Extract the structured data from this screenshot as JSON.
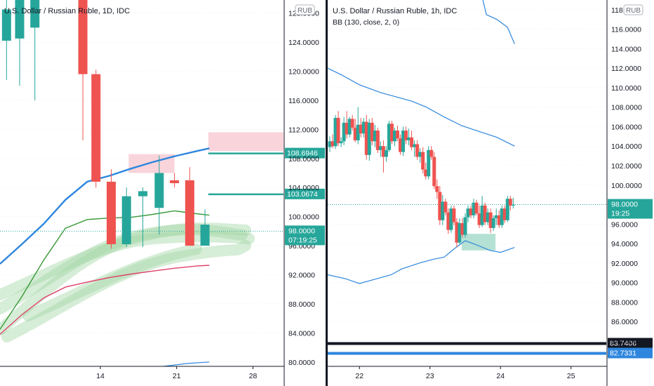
{
  "colors": {
    "up": "#26a69a",
    "down": "#ef5350",
    "bb": "#2e86de",
    "ma_green": "#3a9a3a",
    "ma_red": "#e0406a",
    "zone_pink": "#f8c6cf",
    "zone_teal": "#a8dccd",
    "hl_green": "#a5d6a7",
    "axis_line": "#131722",
    "grid": "#e0e3eb"
  },
  "chart_data": [
    {
      "type": "candlestick",
      "title": "U.S. Dollar / Russian Ruble, 1D, IDC",
      "currency_label": "RUB",
      "y_ticks": [
        "80.0000",
        "84.0000",
        "88.0000",
        "92.0000",
        "96.0000",
        "100.0000",
        "104.0000",
        "108.0000",
        "112.0000",
        "116.0000",
        "120.0000",
        "124.0000",
        "128.0000"
      ],
      "y_tick_values": [
        80,
        84,
        88,
        92,
        96,
        100,
        104,
        108,
        112,
        116,
        120,
        124,
        128
      ],
      "ylim": [
        79.4,
        129.8
      ],
      "x_tick_labels": [
        "14",
        "21",
        "28"
      ],
      "x_tick_positions": [
        4.6,
        8.1,
        11.6
      ],
      "xlim": [
        0,
        13
      ],
      "candles": [
        {
          "t": 0.3,
          "open": 124.2,
          "high": 132.0,
          "low": 118.8,
          "close": 128.5
        },
        {
          "t": 0.9,
          "open": 124.5,
          "high": 130.0,
          "low": 118.0,
          "close": 130.0
        },
        {
          "t": 1.6,
          "open": 126.0,
          "high": 131.0,
          "low": 116.0,
          "close": 130.0
        },
        {
          "t": 3.8,
          "open": 133.0,
          "high": 134.0,
          "low": 110.5,
          "close": 119.6
        },
        {
          "t": 4.4,
          "open": 119.6,
          "high": 120.2,
          "low": 104.0,
          "close": 104.8
        },
        {
          "t": 5.1,
          "open": 104.8,
          "high": 106.5,
          "low": 95.6,
          "close": 96.2
        },
        {
          "t": 5.8,
          "open": 96.2,
          "high": 104.0,
          "low": 95.8,
          "close": 102.8
        },
        {
          "t": 6.55,
          "open": 102.8,
          "high": 104.0,
          "low": 95.8,
          "close": 103.5
        },
        {
          "t": 7.3,
          "open": 101.2,
          "high": 108.4,
          "low": 97.5,
          "close": 106.0
        },
        {
          "t": 8.0,
          "open": 105.0,
          "high": 106.0,
          "low": 104.0,
          "close": 104.6
        },
        {
          "t": 8.7,
          "open": 105.0,
          "high": 106.8,
          "low": 96.0,
          "close": 96.0
        },
        {
          "t": 9.4,
          "open": 96.0,
          "high": 101.0,
          "low": 96.0,
          "close": 98.9
        }
      ],
      "bb_upper": [
        {
          "t": 0,
          "v": 93.5
        },
        {
          "t": 1,
          "v": 96.2
        },
        {
          "t": 2,
          "v": 99.0
        },
        {
          "t": 3,
          "v": 102.3
        },
        {
          "t": 4,
          "v": 104.8
        },
        {
          "t": 5,
          "v": 105.6
        },
        {
          "t": 6,
          "v": 106.6
        },
        {
          "t": 7,
          "v": 107.5
        },
        {
          "t": 8,
          "v": 108.3
        },
        {
          "t": 9,
          "v": 109.0
        },
        {
          "t": 9.6,
          "v": 109.4
        }
      ],
      "ma_green": [
        {
          "t": 0,
          "v": 84.5
        },
        {
          "t": 1,
          "v": 89.0
        },
        {
          "t": 2,
          "v": 94.0
        },
        {
          "t": 3,
          "v": 98.4
        },
        {
          "t": 4,
          "v": 99.6
        },
        {
          "t": 5,
          "v": 99.8
        },
        {
          "t": 6,
          "v": 99.9
        },
        {
          "t": 7,
          "v": 100.3
        },
        {
          "t": 8,
          "v": 100.8
        },
        {
          "t": 9,
          "v": 100.4
        },
        {
          "t": 9.6,
          "v": 100.2
        }
      ],
      "ma_red": [
        {
          "t": 0,
          "v": 83.8
        },
        {
          "t": 1,
          "v": 86.5
        },
        {
          "t": 2,
          "v": 88.8
        },
        {
          "t": 3,
          "v": 90.3
        },
        {
          "t": 4,
          "v": 91.0
        },
        {
          "t": 5,
          "v": 91.6
        },
        {
          "t": 6,
          "v": 92.1
        },
        {
          "t": 7,
          "v": 92.5
        },
        {
          "t": 8,
          "v": 92.9
        },
        {
          "t": 9,
          "v": 93.2
        },
        {
          "t": 9.6,
          "v": 93.3
        }
      ],
      "bb_lower": [
        {
          "t": 7.5,
          "v": 79.4
        },
        {
          "t": 8.6,
          "v": 79.8
        },
        {
          "t": 9.6,
          "v": 80.0
        }
      ],
      "zones": [
        {
          "t0": 5.9,
          "t1": 8.0,
          "v0": 106.0,
          "v1": 108.6,
          "role": "pink"
        },
        {
          "t0": 9.55,
          "t1": 13.0,
          "v0": 109.0,
          "v1": 111.6,
          "role": "pink"
        }
      ],
      "levels": [
        {
          "t0": 9.55,
          "t1": 13.0,
          "v": 108.6946,
          "label": "108.6946",
          "role": "green"
        },
        {
          "t0": 9.55,
          "t1": 13.0,
          "v": 103.0674,
          "label": "103.0674",
          "role": "green"
        }
      ],
      "last_price": {
        "v": 98.0,
        "label": "98.0000",
        "countdown": "07:19:25"
      }
    },
    {
      "type": "candlestick",
      "title": "U.S. Dollar / Russian Ruble, 1h, IDC",
      "study_label": "BB (130, close, 2, 0)",
      "currency_label": "RUB",
      "y_ticks": [
        "84.0000",
        "86.0000",
        "88.0000",
        "90.0000",
        "92.0000",
        "94.0000",
        "96.0000",
        "98.0000",
        "100.0000",
        "102.0000",
        "104.0000",
        "106.0000",
        "108.0000",
        "110.0000",
        "112.0000",
        "114.0000",
        "116.0000",
        "118.0000"
      ],
      "y_tick_values": [
        84,
        86,
        88,
        90,
        92,
        94,
        96,
        98,
        100,
        102,
        104,
        106,
        108,
        110,
        112,
        114,
        116,
        118
      ],
      "ylim": [
        81.4,
        119.0
      ],
      "x_tick_labels": [
        "22",
        "23",
        "24",
        "25"
      ],
      "x_tick_positions": [
        22,
        23,
        24,
        25
      ],
      "xlim": [
        21.55,
        25.5
      ],
      "candles": [
        {
          "t": 21.58,
          "open": 103.9,
          "high": 105.0,
          "low": 103.4,
          "close": 104.5
        },
        {
          "t": 21.62,
          "open": 104.5,
          "high": 105.2,
          "low": 103.8,
          "close": 104.0
        },
        {
          "t": 21.66,
          "open": 104.0,
          "high": 107.2,
          "low": 103.7,
          "close": 106.9
        },
        {
          "t": 21.7,
          "open": 106.9,
          "high": 107.6,
          "low": 104.0,
          "close": 104.3
        },
        {
          "t": 21.74,
          "open": 104.3,
          "high": 104.9,
          "low": 103.9,
          "close": 104.5
        },
        {
          "t": 21.78,
          "open": 104.5,
          "high": 107.0,
          "low": 104.1,
          "close": 106.4
        },
        {
          "t": 21.82,
          "open": 106.4,
          "high": 107.6,
          "low": 104.8,
          "close": 105.2
        },
        {
          "t": 21.86,
          "open": 105.2,
          "high": 107.0,
          "low": 104.9,
          "close": 106.8
        },
        {
          "t": 21.9,
          "open": 106.8,
          "high": 107.2,
          "low": 105.6,
          "close": 105.9
        },
        {
          "t": 21.94,
          "open": 105.9,
          "high": 106.8,
          "low": 104.4,
          "close": 104.6
        },
        {
          "t": 21.98,
          "open": 104.6,
          "high": 108.0,
          "low": 104.2,
          "close": 106.2
        },
        {
          "t": 22.02,
          "open": 106.2,
          "high": 106.9,
          "low": 104.9,
          "close": 105.3
        },
        {
          "t": 22.06,
          "open": 105.3,
          "high": 106.9,
          "low": 104.9,
          "close": 106.5
        },
        {
          "t": 22.1,
          "open": 106.5,
          "high": 107.2,
          "low": 102.6,
          "close": 103.1
        },
        {
          "t": 22.14,
          "open": 103.1,
          "high": 106.8,
          "low": 102.5,
          "close": 106.4
        },
        {
          "t": 22.18,
          "open": 106.4,
          "high": 106.9,
          "low": 104.1,
          "close": 104.5
        },
        {
          "t": 22.22,
          "open": 104.5,
          "high": 106.2,
          "low": 103.9,
          "close": 105.6
        },
        {
          "t": 22.26,
          "open": 105.6,
          "high": 105.9,
          "low": 103.3,
          "close": 103.6
        },
        {
          "t": 22.3,
          "open": 103.6,
          "high": 104.5,
          "low": 102.9,
          "close": 104.0
        },
        {
          "t": 22.34,
          "open": 104.0,
          "high": 104.6,
          "low": 101.3,
          "close": 102.9
        },
        {
          "t": 22.38,
          "open": 102.9,
          "high": 104.0,
          "low": 102.4,
          "close": 103.6
        },
        {
          "t": 22.42,
          "open": 103.6,
          "high": 106.6,
          "low": 103.4,
          "close": 106.3
        },
        {
          "t": 22.46,
          "open": 106.3,
          "high": 106.6,
          "low": 104.2,
          "close": 104.5
        },
        {
          "t": 22.5,
          "open": 104.5,
          "high": 105.9,
          "low": 104.0,
          "close": 105.6
        },
        {
          "t": 22.54,
          "open": 105.6,
          "high": 106.1,
          "low": 104.5,
          "close": 104.8
        },
        {
          "t": 22.58,
          "open": 104.8,
          "high": 105.2,
          "low": 103.1,
          "close": 103.4
        },
        {
          "t": 22.62,
          "open": 103.4,
          "high": 106.0,
          "low": 103.0,
          "close": 105.6
        },
        {
          "t": 22.66,
          "open": 105.6,
          "high": 106.0,
          "low": 104.2,
          "close": 104.6
        },
        {
          "t": 22.7,
          "open": 104.6,
          "high": 105.8,
          "low": 104.1,
          "close": 104.9
        },
        {
          "t": 22.74,
          "open": 104.9,
          "high": 105.6,
          "low": 103.6,
          "close": 103.9
        },
        {
          "t": 22.78,
          "open": 103.9,
          "high": 104.6,
          "low": 102.9,
          "close": 104.2
        },
        {
          "t": 22.82,
          "open": 104.2,
          "high": 104.6,
          "low": 102.6,
          "close": 102.9
        },
        {
          "t": 22.86,
          "open": 102.9,
          "high": 103.8,
          "low": 102.3,
          "close": 103.4
        },
        {
          "t": 22.9,
          "open": 103.4,
          "high": 103.9,
          "low": 101.2,
          "close": 101.6
        },
        {
          "t": 22.94,
          "open": 101.6,
          "high": 102.3,
          "low": 100.6,
          "close": 100.9
        },
        {
          "t": 22.98,
          "open": 100.9,
          "high": 104.0,
          "low": 100.6,
          "close": 103.6
        },
        {
          "t": 23.02,
          "open": 103.6,
          "high": 104.0,
          "low": 102.6,
          "close": 102.9
        },
        {
          "t": 23.06,
          "open": 102.9,
          "high": 103.4,
          "low": 99.6,
          "close": 99.9
        },
        {
          "t": 23.1,
          "open": 99.9,
          "high": 100.6,
          "low": 98.6,
          "close": 99.3
        },
        {
          "t": 23.14,
          "open": 99.3,
          "high": 99.9,
          "low": 95.9,
          "close": 96.4
        },
        {
          "t": 23.18,
          "open": 96.4,
          "high": 99.0,
          "low": 95.9,
          "close": 98.3
        },
        {
          "t": 23.22,
          "open": 98.3,
          "high": 98.6,
          "low": 96.9,
          "close": 97.2
        },
        {
          "t": 23.26,
          "open": 97.2,
          "high": 97.6,
          "low": 95.0,
          "close": 95.4
        },
        {
          "t": 23.3,
          "open": 95.4,
          "high": 97.9,
          "low": 95.1,
          "close": 97.6
        },
        {
          "t": 23.34,
          "open": 97.6,
          "high": 97.9,
          "low": 95.9,
          "close": 96.2
        },
        {
          "t": 23.38,
          "open": 96.2,
          "high": 96.6,
          "low": 93.6,
          "close": 94.1
        },
        {
          "t": 23.42,
          "open": 94.1,
          "high": 96.6,
          "low": 93.9,
          "close": 96.1
        },
        {
          "t": 23.46,
          "open": 96.1,
          "high": 96.6,
          "low": 94.6,
          "close": 94.9
        },
        {
          "t": 23.5,
          "open": 94.9,
          "high": 97.1,
          "low": 94.6,
          "close": 96.7
        },
        {
          "t": 23.54,
          "open": 96.7,
          "high": 97.9,
          "low": 96.2,
          "close": 97.6
        },
        {
          "t": 23.58,
          "open": 97.6,
          "high": 97.9,
          "low": 96.6,
          "close": 96.9
        },
        {
          "t": 23.62,
          "open": 96.9,
          "high": 98.6,
          "low": 96.6,
          "close": 98.2
        },
        {
          "t": 23.66,
          "open": 98.2,
          "high": 98.5,
          "low": 96.9,
          "close": 97.1
        },
        {
          "t": 23.7,
          "open": 97.1,
          "high": 97.9,
          "low": 95.6,
          "close": 95.9
        },
        {
          "t": 23.74,
          "open": 95.9,
          "high": 98.9,
          "low": 95.7,
          "close": 97.9
        },
        {
          "t": 23.78,
          "open": 97.9,
          "high": 98.2,
          "low": 95.9,
          "close": 96.2
        },
        {
          "t": 23.82,
          "open": 96.2,
          "high": 97.6,
          "low": 95.9,
          "close": 97.2
        },
        {
          "t": 23.86,
          "open": 97.2,
          "high": 97.6,
          "low": 95.1,
          "close": 95.6
        },
        {
          "t": 23.9,
          "open": 95.6,
          "high": 96.9,
          "low": 95.3,
          "close": 96.6
        },
        {
          "t": 23.94,
          "open": 96.6,
          "high": 97.6,
          "low": 95.9,
          "close": 96.9
        },
        {
          "t": 23.98,
          "open": 96.9,
          "high": 97.4,
          "low": 95.6,
          "close": 95.9
        },
        {
          "t": 24.02,
          "open": 95.9,
          "high": 97.9,
          "low": 95.6,
          "close": 97.6
        },
        {
          "t": 24.06,
          "open": 97.6,
          "high": 97.9,
          "low": 96.1,
          "close": 96.4
        },
        {
          "t": 24.1,
          "open": 96.4,
          "high": 98.9,
          "low": 96.2,
          "close": 98.6
        },
        {
          "t": 24.14,
          "open": 98.6,
          "high": 98.9,
          "low": 97.4,
          "close": 97.9
        },
        {
          "t": 24.18,
          "open": 97.9,
          "high": 98.7,
          "low": 97.6,
          "close": 98.0
        }
      ],
      "bb_upper": [
        {
          "t": 21.55,
          "v": 112.0
        },
        {
          "t": 21.75,
          "v": 111.3
        },
        {
          "t": 22.0,
          "v": 110.3
        },
        {
          "t": 22.3,
          "v": 109.5
        },
        {
          "t": 22.55,
          "v": 109.0
        },
        {
          "t": 22.75,
          "v": 108.6
        },
        {
          "t": 22.95,
          "v": 108.0
        },
        {
          "t": 23.2,
          "v": 107.0
        },
        {
          "t": 23.45,
          "v": 106.1
        },
        {
          "t": 23.7,
          "v": 105.5
        },
        {
          "t": 23.95,
          "v": 104.9
        },
        {
          "t": 24.2,
          "v": 104.0
        }
      ],
      "bb_upper_2": [
        {
          "t": 23.75,
          "v": 119.0
        },
        {
          "t": 23.8,
          "v": 117.5
        },
        {
          "t": 23.95,
          "v": 117.0
        },
        {
          "t": 24.1,
          "v": 116.2
        },
        {
          "t": 24.2,
          "v": 114.5
        }
      ],
      "bb_lower": [
        {
          "t": 21.55,
          "v": 90.8
        },
        {
          "t": 21.8,
          "v": 90.4
        },
        {
          "t": 22.0,
          "v": 89.9
        },
        {
          "t": 22.2,
          "v": 90.3
        },
        {
          "t": 22.45,
          "v": 90.8
        },
        {
          "t": 22.6,
          "v": 91.4
        },
        {
          "t": 22.85,
          "v": 92.0
        },
        {
          "t": 23.05,
          "v": 92.4
        },
        {
          "t": 23.2,
          "v": 92.6
        },
        {
          "t": 23.35,
          "v": 93.5
        },
        {
          "t": 23.5,
          "v": 94.3
        },
        {
          "t": 23.65,
          "v": 93.9
        },
        {
          "t": 23.85,
          "v": 93.3
        },
        {
          "t": 24.0,
          "v": 93.1
        },
        {
          "t": 24.2,
          "v": 93.6
        }
      ],
      "zones": [
        {
          "t0": 23.45,
          "t1": 23.93,
          "v0": 93.3,
          "v1": 95.0,
          "role": "teal"
        }
      ],
      "levels": [
        {
          "v": 83.7406,
          "label": "83.7406",
          "role": "black"
        },
        {
          "v": 82.7331,
          "label": "82.7331",
          "role": "blue"
        }
      ],
      "last_price": {
        "v": 98.0,
        "label": "98.0000",
        "countdown": "19:25"
      }
    }
  ]
}
